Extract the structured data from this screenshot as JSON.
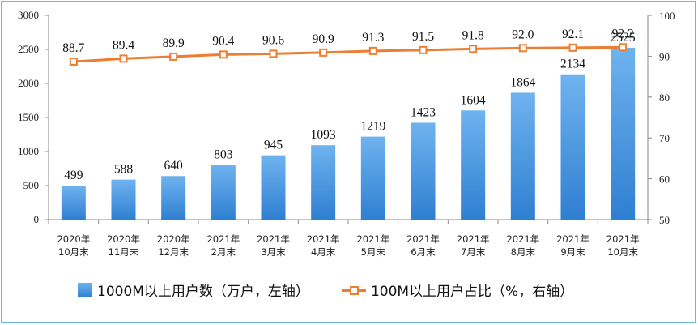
{
  "chart_data": {
    "type": "bar+line",
    "categories": [
      [
        "2020年",
        "10月末"
      ],
      [
        "2020年",
        "11月末"
      ],
      [
        "2020年",
        "12月末"
      ],
      [
        "2021年",
        "2月末"
      ],
      [
        "2021年",
        "3月末"
      ],
      [
        "2021年",
        "4月末"
      ],
      [
        "2021年",
        "5月末"
      ],
      [
        "2021年",
        "6月末"
      ],
      [
        "2021年",
        "7月末"
      ],
      [
        "2021年",
        "8月末"
      ],
      [
        "2021年",
        "9月末"
      ],
      [
        "2021年",
        "10月末"
      ]
    ],
    "series": [
      {
        "name": "1000M以上用户数（万户，左轴）",
        "type": "bar",
        "axis": "left",
        "values": [
          499,
          588,
          640,
          803,
          945,
          1093,
          1219,
          1423,
          1604,
          1864,
          2134,
          2525
        ],
        "labels": [
          "499",
          "588",
          "640",
          "803",
          "945",
          "1093",
          "1219",
          "1423",
          "1604",
          "1864",
          "2134",
          "2525"
        ]
      },
      {
        "name": "100M以上用户占比（%，右轴）",
        "type": "line",
        "axis": "right",
        "values": [
          88.7,
          89.4,
          89.9,
          90.4,
          90.6,
          90.9,
          91.3,
          91.5,
          91.8,
          92.0,
          92.1,
          92.2
        ],
        "labels": [
          "88.7",
          "89.4",
          "89.9",
          "90.4",
          "90.6",
          "90.9",
          "91.3",
          "91.5",
          "91.8",
          "92.0",
          "92.1",
          "92.2"
        ]
      }
    ],
    "y_left": {
      "ylim": [
        0,
        3000
      ],
      "ticks": [
        "0",
        "500",
        "1000",
        "1500",
        "2000",
        "2500",
        "3000"
      ]
    },
    "y_right": {
      "ylim": [
        50,
        100
      ],
      "ticks": [
        "50",
        "60",
        "70",
        "80",
        "90",
        "100"
      ]
    },
    "grid": false,
    "legend_position": "bottom",
    "colors": {
      "bar": "#3f8fdc",
      "line": "#ec7d31"
    }
  }
}
